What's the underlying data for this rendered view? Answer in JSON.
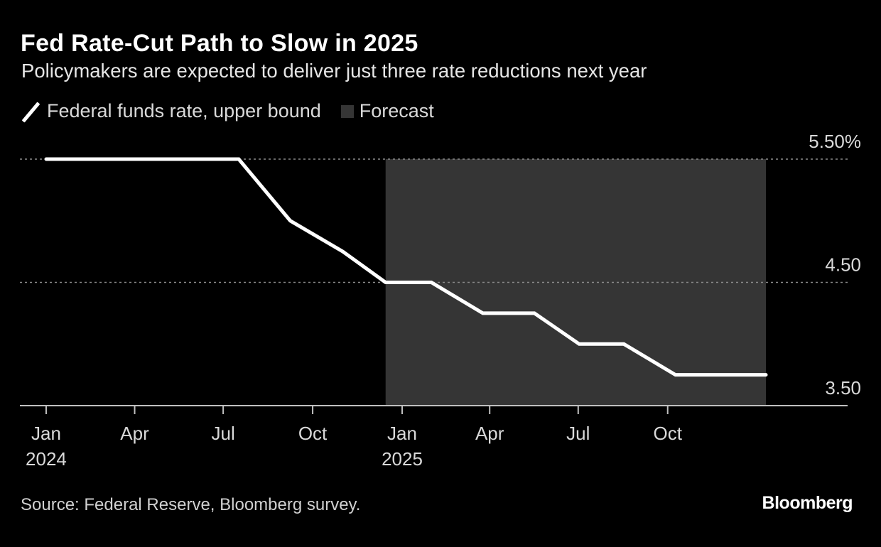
{
  "header": {
    "title": "Fed Rate-Cut Path to Slow in 2025",
    "subtitle": "Policymakers are expected to deliver just three rate reductions next year"
  },
  "legend": {
    "series_label": "Federal funds rate, upper bound",
    "forecast_label": "Forecast"
  },
  "footer": {
    "source": "Source: Federal Reserve, Bloomberg survey.",
    "logo": "Bloomberg"
  },
  "colors": {
    "background": "#000000",
    "line": "#ffffff",
    "forecast_shading": "#353535",
    "gridline": "#8a8a8a",
    "axis": "#bfbfbf"
  },
  "chart_data": {
    "type": "line",
    "title": "Fed Rate-Cut Path to Slow in 2025",
    "subtitle": "Policymakers are expected to deliver just three rate reductions next year",
    "xlabel": "",
    "ylabel": "",
    "y_unit": "%",
    "ylim": [
      3.5,
      5.5
    ],
    "xlim": [
      "2023-12-05",
      "2026-04-04"
    ],
    "y_ticks": [
      {
        "value": 5.5,
        "label": "5.50%"
      },
      {
        "value": 4.5,
        "label": "4.50"
      },
      {
        "value": 3.5,
        "label": "3.50"
      }
    ],
    "x_ticks": [
      {
        "date": "2024-01-01",
        "label": "Jan",
        "year": "2024"
      },
      {
        "date": "2024-04-01",
        "label": "Apr",
        "year": ""
      },
      {
        "date": "2024-07-01",
        "label": "Jul",
        "year": ""
      },
      {
        "date": "2024-10-01",
        "label": "Oct",
        "year": ""
      },
      {
        "date": "2025-01-01",
        "label": "Jan",
        "year": "2025"
      },
      {
        "date": "2025-04-01",
        "label": "Apr",
        "year": ""
      },
      {
        "date": "2025-07-01",
        "label": "Jul",
        "year": ""
      },
      {
        "date": "2025-10-01",
        "label": "Oct",
        "year": ""
      }
    ],
    "grid": "horizontal dotted",
    "legend_placement": "top-left",
    "y_axis_side": "right",
    "forecast_region": [
      "2024-12-15",
      "2026-01-10"
    ],
    "series": [
      {
        "name": "Federal funds rate, upper bound",
        "x": [
          "2024-01-01",
          "2024-07-17",
          "2024-09-08",
          "2024-11-01",
          "2024-12-15",
          "2025-01-31",
          "2025-03-25",
          "2025-05-17",
          "2025-07-02",
          "2025-08-17",
          "2025-10-09",
          "2026-01-10"
        ],
        "y": [
          5.5,
          5.5,
          5.0,
          4.75,
          4.5,
          4.5,
          4.25,
          4.25,
          4.0,
          4.0,
          3.75,
          3.75
        ]
      }
    ]
  }
}
